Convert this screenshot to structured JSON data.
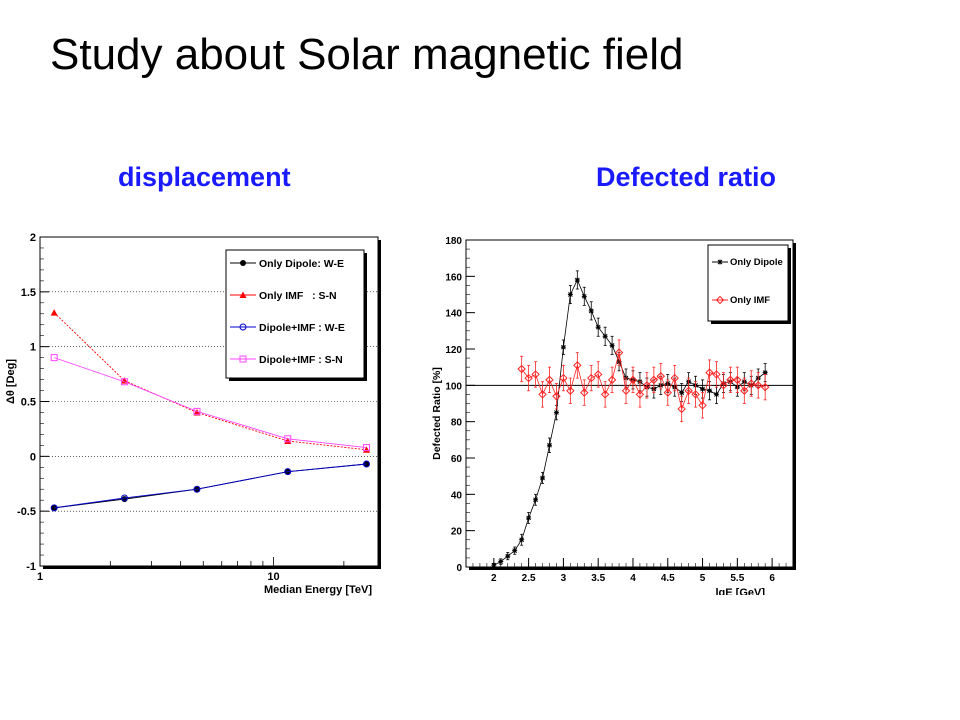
{
  "slide": {
    "title": "Study about Solar magnetic field",
    "subtitle_left": "displacement",
    "subtitle_right": "Defected ratio"
  },
  "colors": {
    "subtitle": "#1a1aff",
    "black": "#000000",
    "red": "#ff0000",
    "blue": "#0000cc",
    "magenta": "#ff44ff"
  },
  "chart_data": [
    {
      "type": "line",
      "xlabel": "Median Energy [TeV]",
      "ylabel": "Δθ [Deg]",
      "xscale": "log",
      "xlim": [
        1,
        28
      ],
      "ylim": [
        -1,
        2
      ],
      "xtick_labels": [
        "1",
        "10"
      ],
      "ytick_labels": [
        "-1",
        "-0.5",
        "0",
        "0.5",
        "1",
        "1.5",
        "2"
      ],
      "grid": "horizontal dotted",
      "legend_position": "top-right",
      "x": [
        1.15,
        2.3,
        4.7,
        11.5,
        25
      ],
      "series": [
        {
          "name": "Only Dipole: W-E",
          "color": "#000000",
          "marker": "filled-circle",
          "values": [
            -0.47,
            -0.39,
            -0.3,
            -0.14,
            -0.07
          ]
        },
        {
          "name": "Only IMF   : S-N",
          "color": "#ff0000",
          "marker": "filled-triangle",
          "values": [
            1.31,
            0.69,
            0.4,
            0.14,
            0.06
          ]
        },
        {
          "name": "Dipole+IMF : W-E",
          "color": "#0000cc",
          "marker": "open-circle",
          "values": [
            -0.47,
            -0.38,
            -0.3,
            -0.14,
            -0.07
          ]
        },
        {
          "name": "Dipole+IMF : S-N",
          "color": "#ff44ff",
          "marker": "open-square",
          "values": [
            0.9,
            0.68,
            0.41,
            0.16,
            0.08
          ]
        }
      ]
    },
    {
      "type": "line",
      "xlabel": "lgE [GeV]",
      "ylabel": "Defected Ratio [%]",
      "xlim": [
        1.6,
        6.3
      ],
      "ylim": [
        0,
        180
      ],
      "xtick_labels": [
        "2",
        "2.5",
        "3",
        "3.5",
        "4",
        "4.5",
        "5",
        "5.5",
        "6"
      ],
      "ytick_labels": [
        "0",
        "20",
        "40",
        "60",
        "80",
        "100",
        "120",
        "140",
        "160",
        "180"
      ],
      "reference_line": 100,
      "legend_position": "top-right",
      "series": [
        {
          "name": "Only Dipole",
          "color": "#000000",
          "marker": "star",
          "x": [
            2.0,
            2.1,
            2.2,
            2.3,
            2.4,
            2.5,
            2.6,
            2.7,
            2.8,
            2.9,
            3.0,
            3.1,
            3.2,
            3.3,
            3.4,
            3.5,
            3.6,
            3.7,
            3.8,
            3.9,
            4.0,
            4.1,
            4.2,
            4.3,
            4.4,
            4.5,
            4.6,
            4.7,
            4.8,
            4.9,
            5.0,
            5.1,
            5.2,
            5.3,
            5.4,
            5.5,
            5.6,
            5.7,
            5.8,
            5.9
          ],
          "values": [
            1,
            3,
            6,
            9,
            15,
            27,
            37,
            49,
            67,
            85,
            121,
            150,
            158,
            149,
            141,
            132,
            127,
            122,
            113,
            104,
            103,
            102,
            99,
            98,
            100,
            101,
            99,
            96,
            102,
            100,
            98,
            97,
            95,
            101,
            102,
            99,
            102,
            100,
            104,
            107
          ],
          "errors": [
            1,
            1.5,
            2,
            2,
            3,
            3,
            3,
            3,
            4,
            4,
            4,
            5,
            5,
            5,
            5,
            5,
            5,
            5,
            5,
            5,
            5,
            5,
            5,
            5,
            5,
            5,
            5,
            5,
            5,
            5,
            5,
            5,
            5,
            5,
            5,
            5,
            5,
            5,
            5,
            5
          ]
        },
        {
          "name": "Only IMF",
          "color": "#ff2222",
          "marker": "open-diamond",
          "x": [
            2.4,
            2.5,
            2.6,
            2.7,
            2.8,
            2.9,
            3.0,
            3.1,
            3.2,
            3.3,
            3.4,
            3.5,
            3.6,
            3.7,
            3.8,
            3.9,
            4.0,
            4.1,
            4.2,
            4.3,
            4.4,
            4.5,
            4.6,
            4.7,
            4.8,
            4.9,
            5.0,
            5.1,
            5.2,
            5.3,
            5.4,
            5.5,
            5.6,
            5.7,
            5.8,
            5.9
          ],
          "values": [
            109,
            104,
            106,
            95,
            103,
            94,
            104,
            97,
            111,
            96,
            104,
            106,
            95,
            103,
            118,
            97,
            103,
            95,
            100,
            103,
            105,
            96,
            104,
            87,
            97,
            95,
            89,
            107,
            106,
            100,
            103,
            103,
            97,
            101,
            100,
            99
          ],
          "errors": [
            7,
            7,
            7,
            7,
            7,
            7,
            7,
            7,
            7,
            7,
            7,
            7,
            7,
            7,
            7,
            7,
            7,
            7,
            7,
            7,
            7,
            7,
            7,
            7,
            7,
            7,
            7,
            7,
            7,
            7,
            7,
            7,
            7,
            7,
            7,
            7
          ]
        }
      ]
    }
  ]
}
